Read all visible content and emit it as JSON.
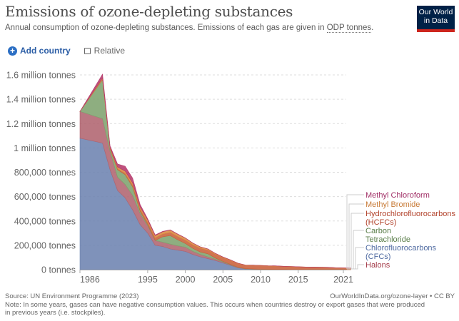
{
  "header": {
    "title": "Emissions of ozone-depleting substances",
    "subtitle_prefix": "Annual consumption of ozone-depleting substances. Emissions of each gas are given in ",
    "subtitle_link": "ODP tonnes",
    "subtitle_suffix": ".",
    "logo_line1": "Our World",
    "logo_line2": "in Data"
  },
  "controls": {
    "add_icon": "plus-circle-icon",
    "add_label": "Add country",
    "relative_label": "Relative",
    "relative_checked": false
  },
  "footer": {
    "source": "Source: UN Environment Programme (2023)",
    "url": "OurWorldInData.org/ozone-layer • CC BY",
    "note_line1": "Note: In some years, gases can have negative consumption values. This occurs when countries destroy or export gases that were produced",
    "note_line2": "in previous years (i.e. stockpiles)."
  },
  "chart_data": {
    "type": "area",
    "stacked": true,
    "title": "Emissions of ozone-depleting substances",
    "xlabel": "",
    "ylabel": "",
    "xlim": [
      1986,
      2022
    ],
    "ylim": [
      0,
      1600000
    ],
    "grid": true,
    "legend_placement": "right",
    "x_ticks": [
      1986,
      1995,
      2000,
      2005,
      2010,
      2015,
      2021
    ],
    "y_ticks": [
      {
        "value": 0,
        "label": "0 tonnes"
      },
      {
        "value": 200000,
        "label": "200,000 tonnes"
      },
      {
        "value": 400000,
        "label": "400,000 tonnes"
      },
      {
        "value": 600000,
        "label": "600,000 tonnes"
      },
      {
        "value": 800000,
        "label": "800,000 tonnes"
      },
      {
        "value": 1000000,
        "label": "1 million tonnes"
      },
      {
        "value": 1200000,
        "label": "1.2 million tonnes"
      },
      {
        "value": 1400000,
        "label": "1.4 million tonnes"
      },
      {
        "value": 1600000,
        "label": "1.6 million tonnes"
      }
    ],
    "x": [
      1986,
      1989,
      1990,
      1991,
      1992,
      1993,
      1994,
      1995,
      1996,
      1997,
      1998,
      1999,
      2000,
      2001,
      2002,
      2003,
      2004,
      2005,
      2006,
      2007,
      2008,
      2009,
      2010,
      2011,
      2012,
      2013,
      2014,
      2015,
      2016,
      2017,
      2018,
      2019,
      2020,
      2021,
      2022
    ],
    "series": [
      {
        "name": "Chlorofluorocarbons (CFCs)",
        "color": "#6d83b0",
        "values": [
          1080000,
          1040000,
          820000,
          650000,
          590000,
          490000,
          370000,
          300000,
          200000,
          190000,
          170000,
          160000,
          150000,
          125000,
          105000,
          90000,
          75000,
          55000,
          35000,
          15000,
          5000,
          3000,
          2000,
          1500,
          1000,
          1000,
          800,
          600,
          500,
          400,
          300,
          300,
          200,
          200,
          200
        ]
      },
      {
        "name": "Halons",
        "color": "#b06470",
        "values": [
          220000,
          200000,
          150000,
          110000,
          110000,
          120000,
          90000,
          60000,
          40000,
          35000,
          40000,
          35000,
          35000,
          25000,
          20000,
          15000,
          10000,
          8000,
          5000,
          3000,
          2000,
          1000,
          1000,
          500,
          500,
          500,
          300,
          300,
          200,
          200,
          200,
          100,
          100,
          100,
          100
        ]
      },
      {
        "name": "Carbon Tetrachloride",
        "color": "#7ea36e",
        "values": [
          0,
          320000,
          20000,
          60000,
          80000,
          70000,
          20000,
          10000,
          0,
          45000,
          70000,
          50000,
          30000,
          25000,
          20000,
          25000,
          10000,
          5000,
          3000,
          2000,
          1000,
          1000,
          500,
          500,
          500,
          300,
          300,
          200,
          200,
          200,
          100,
          100,
          100,
          100,
          100
        ]
      },
      {
        "name": "Hydrochlorofluorocarbons (HCFCs)",
        "color": "#c9603a",
        "values": [
          0,
          5000,
          5000,
          8000,
          10000,
          12000,
          15000,
          18000,
          20000,
          22000,
          25000,
          26000,
          27000,
          28000,
          30000,
          30000,
          30000,
          30000,
          32000,
          30000,
          28000,
          30000,
          30000,
          28000,
          28000,
          25000,
          24000,
          22000,
          20000,
          20000,
          19000,
          18000,
          15000,
          13000,
          12000
        ]
      },
      {
        "name": "Methyl Bromide",
        "color": "#d9883f",
        "values": [
          0,
          10000,
          10000,
          15000,
          20000,
          20000,
          20000,
          20000,
          20000,
          20000,
          20000,
          20000,
          18000,
          15000,
          12000,
          10000,
          8000,
          6000,
          5000,
          3000,
          2000,
          2000,
          1500,
          1500,
          1000,
          1000,
          1000,
          800,
          800,
          500,
          500,
          500,
          500,
          500,
          500
        ]
      },
      {
        "name": "Methyl Chloroform",
        "color": "#b5396b",
        "values": [
          0,
          30000,
          10000,
          25000,
          40000,
          40000,
          20000,
          10000,
          5000,
          3000,
          2000,
          1500,
          1000,
          1000,
          800,
          500,
          500,
          300,
          300,
          200,
          200,
          100,
          100,
          100,
          100,
          100,
          100,
          100,
          100,
          100,
          100,
          100,
          100,
          100,
          100
        ]
      }
    ],
    "legend": [
      {
        "label": "Methyl Chloroform",
        "color": "#a13067"
      },
      {
        "label": "Methyl Bromide",
        "color": "#c77a36"
      },
      {
        "label": "Hydrochlorofluorocarbons (HCFCs)",
        "color": "#b2432c"
      },
      {
        "label": "Carbon Tetrachloride",
        "color": "#5b7e4a"
      },
      {
        "label": "Chlorofluorocarbons (CFCs)",
        "color": "#4f6aa1"
      },
      {
        "label": "Halons",
        "color": "#a33a48"
      }
    ]
  }
}
